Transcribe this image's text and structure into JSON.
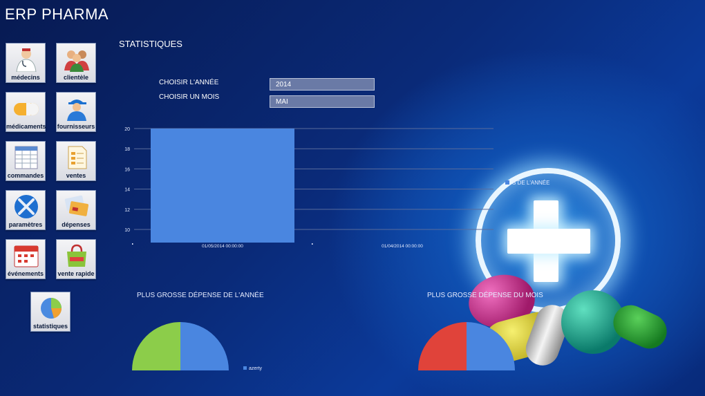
{
  "app": {
    "title": "ERP PHARMA"
  },
  "section": {
    "title": "STATISTIQUES"
  },
  "nav": {
    "tiles": [
      {
        "label": "médecins",
        "icon": "doctor-icon"
      },
      {
        "label": "clientèle",
        "icon": "people-icon"
      },
      {
        "label": "médicaments",
        "icon": "pill-icon"
      },
      {
        "label": "fournisseurs",
        "icon": "supplier-icon"
      },
      {
        "label": "commandes",
        "icon": "order-form-icon"
      },
      {
        "label": "ventes",
        "icon": "sales-document-icon"
      },
      {
        "label": "paramètres",
        "icon": "tools-icon"
      },
      {
        "label": "dépenses",
        "icon": "credit-card-icon"
      },
      {
        "label": "événements",
        "icon": "calendar-icon"
      },
      {
        "label": "vente rapide",
        "icon": "shopping-bag-icon"
      },
      {
        "label": "statistiques",
        "icon": "pie-chart-icon"
      }
    ]
  },
  "filters": {
    "year_label": "CHOISIR L'ANNÉE",
    "year_value": "2014",
    "month_label": "CHOISIR UN MOIS",
    "month_value": "MAI"
  },
  "chart_data": [
    {
      "type": "bar",
      "categories": [
        "01/05/2014 00:00:00",
        "01/04/2014 00:00:00"
      ],
      "values": [
        20,
        8.7
      ],
      "ylim": [
        8.7,
        20
      ],
      "yticks": [
        10,
        12,
        14,
        16,
        18,
        20
      ],
      "legend": "S DE L'ANNÉE",
      "color": "#4a86e0",
      "grid": true
    },
    {
      "type": "pie",
      "title": "PLUS GROSSE DÉPENSE DE L'ANNÉE",
      "slices": [
        {
          "name": "",
          "value": 50,
          "color": "#8ccd4a"
        },
        {
          "name": "azerty",
          "value": 50,
          "color": "#4a86e0"
        }
      ],
      "legend": [
        "azerty"
      ]
    },
    {
      "type": "pie",
      "title": "PLUS GROSSE DÉPENSE DU MOIS",
      "slices": [
        {
          "name": "",
          "value": 50,
          "color": "#e0433a"
        },
        {
          "name": "",
          "value": 50,
          "color": "#4a86e0"
        }
      ]
    }
  ]
}
